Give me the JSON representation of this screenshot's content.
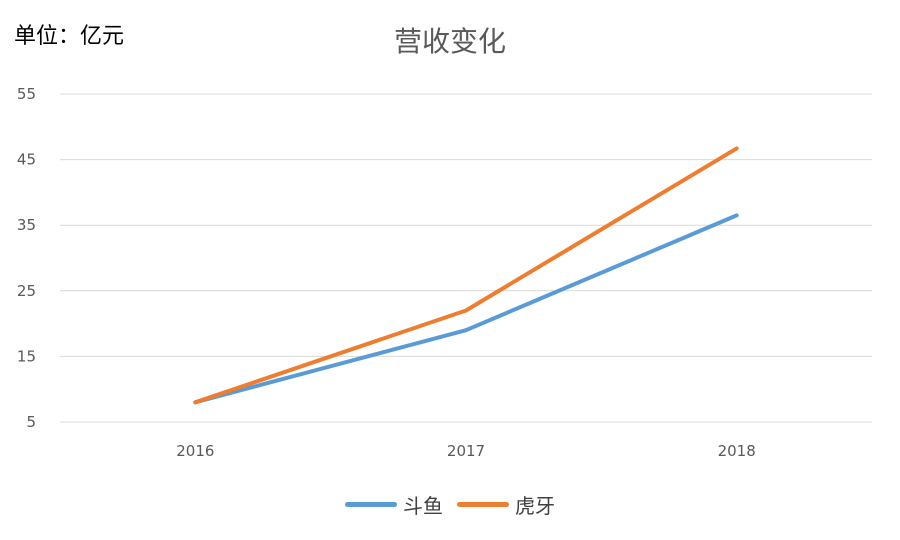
{
  "unit_label": "单位：亿元",
  "colors": {
    "douyu": "#5B9BD5",
    "huya": "#ED7D31",
    "grid": "#D9D9D9",
    "tick_text": "#595959"
  },
  "chart_data": {
    "type": "line",
    "title": "营收变化",
    "xlabel": "",
    "ylabel": "单位：亿元",
    "categories": [
      "2016",
      "2017",
      "2018"
    ],
    "ylim": [
      5,
      55
    ],
    "yticks": [
      5,
      15,
      25,
      35,
      45,
      55
    ],
    "grid": true,
    "legend_position": "bottom",
    "series": [
      {
        "name": "斗鱼",
        "color": "#5B9BD5",
        "values": [
          8,
          19,
          36.5
        ]
      },
      {
        "name": "虎牙",
        "color": "#ED7D31",
        "values": [
          8,
          22,
          46.7
        ]
      }
    ]
  }
}
